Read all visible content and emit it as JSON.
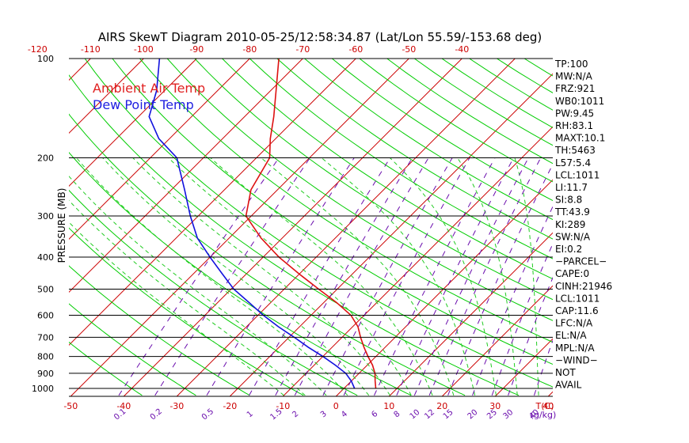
{
  "title": "AIRS SkewT Diagram 2010-05-25/12:58:34.87 (Lat/Lon 55.59/-153.68 deg)",
  "legend": {
    "ambient": {
      "label": "Ambient Air Temp",
      "color": "#e02020"
    },
    "dewpoint": {
      "label": "Dew Point Temp",
      "color": "#2020e0"
    }
  },
  "colors": {
    "isotherm": "#cc0000",
    "dry_adiabat": "#00cc00",
    "moist_adiabat": "#22cc22",
    "mixing_ratio": "#6a0dad",
    "temp_profile": "#dd1111",
    "dew_profile": "#1111dd",
    "isobar": "#000000",
    "bottom_tick_text": "#cc0000",
    "mixing_text": "#6a0dad"
  },
  "chart_data": {
    "type": "line",
    "title": "AIRS SkewT Diagram 2010-05-25/12:58:34.87 (Lat/Lon 55.59/-153.68 deg)",
    "ylabel": "PRESSURE (MB)",
    "xlabel_bottom_unit": "T(C)",
    "mixing_ratio_unit": "(g/kg)",
    "y_scale": "log",
    "ylim": [
      1050,
      100
    ],
    "pressure_levels": [
      100,
      200,
      300,
      400,
      500,
      600,
      700,
      800,
      900,
      1000
    ],
    "top_temperature_ticks": [
      -120,
      -110,
      -100,
      -90,
      -80,
      -70,
      -60,
      -50,
      -40
    ],
    "bottom_temperature_ticks": [
      -50,
      -40,
      -30,
      -20,
      -10,
      0,
      10,
      20,
      30,
      40
    ],
    "mixing_ratio_ticks": [
      "0.1",
      "0.2",
      "0.5",
      "1",
      "1.5",
      "2",
      "3",
      "4",
      "6",
      "8",
      "10",
      "12",
      "15",
      "20",
      "25",
      "30",
      "40"
    ],
    "mixing_ratio_values": [
      0.1,
      0.2,
      0.5,
      1,
      1.5,
      2,
      3,
      4,
      6,
      8,
      10,
      12,
      15,
      20,
      25,
      30,
      40
    ],
    "series": [
      {
        "name": "Ambient Air Temp",
        "pressure": [
          1000,
          950,
          900,
          850,
          800,
          750,
          700,
          650,
          600,
          550,
          500,
          450,
          400,
          350,
          300,
          250,
          200,
          175,
          150,
          125,
          100
        ],
        "temperature": [
          6.0,
          4.5,
          3.0,
          1.0,
          -1.5,
          -4.0,
          -6.5,
          -9.0,
          -12.5,
          -17.5,
          -23.5,
          -30.0,
          -37.0,
          -44.0,
          -51.0,
          -55.0,
          -57.5,
          -61.0,
          -64.5,
          -69.0,
          -74.5
        ]
      },
      {
        "name": "Dew Point Temp",
        "pressure": [
          1000,
          950,
          900,
          850,
          800,
          750,
          700,
          650,
          600,
          550,
          500,
          450,
          400,
          350,
          300,
          250,
          200,
          175,
          150,
          125,
          100
        ],
        "temperature": [
          2.0,
          0.0,
          -2.5,
          -6.0,
          -10.0,
          -14.5,
          -19.0,
          -24.0,
          -29.0,
          -34.0,
          -39.5,
          -44.5,
          -50.0,
          -56.0,
          -61.5,
          -67.5,
          -75.0,
          -82.0,
          -88.0,
          -91.5,
          -97.0
        ]
      }
    ],
    "indices": [
      "TP:100",
      "MW:N/A",
      "FRZ:921",
      "WB0:1011",
      "PW:9.45",
      "RH:83.1",
      "MAXT:10.1",
      "TH:5463",
      "L57:5.4",
      "LCL:1011",
      "LI:11.7",
      "SI:8.8",
      "TT:43.9",
      "KI:289",
      "SW:N/A",
      "EI:0.2",
      "−PARCEL−",
      "CAPE:0",
      "CINH:21946",
      "LCL:1011",
      "CAP:11.6",
      "LFC:N/A",
      "EL:N/A",
      "MPL:N/A",
      "−WIND−",
      "NOT",
      "AVAIL"
    ]
  }
}
